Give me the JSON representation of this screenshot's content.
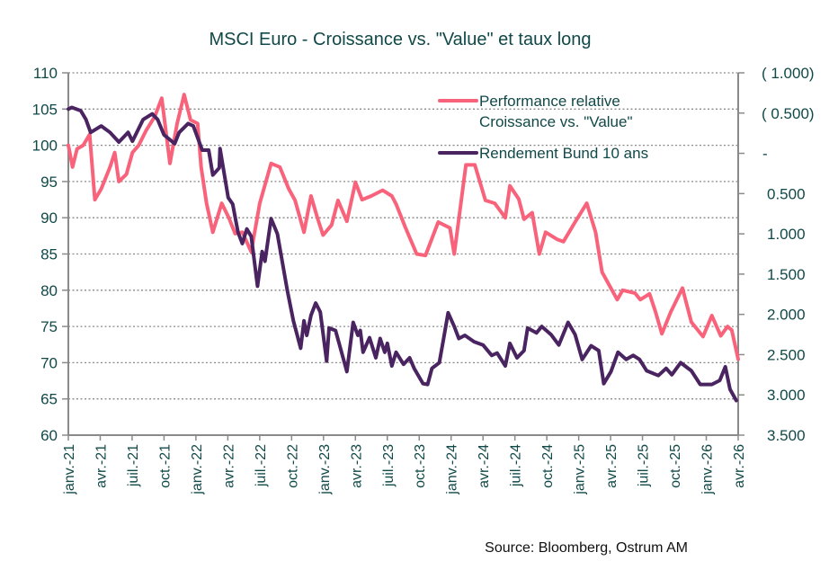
{
  "chart_data": {
    "type": "line",
    "title": "MSCI Euro - Croissance vs. \"Value\" et taux long",
    "source": "Source: Bloomberg, Ostrum AM",
    "x_tick_labels": [
      "janv.-21",
      "avr.-21",
      "juil.-21",
      "oct.-21",
      "janv.-22",
      "avr.-22",
      "juil.-22",
      "oct.-22",
      "janv.-23",
      "avr.-23",
      "juil.-23",
      "oct.-23",
      "janv.-24",
      "avr.-24",
      "juil.-24",
      "oct.-24",
      "janv.-25",
      "avr.-25",
      "juil.-25",
      "oct.-25",
      "janv.-26",
      "avr.-26"
    ],
    "xlim": [
      "2021-01-01",
      "2026-04-01"
    ],
    "y_left": {
      "ylim": [
        60,
        110
      ],
      "ticks": [
        "60",
        "65",
        "70",
        "75",
        "80",
        "85",
        "90",
        "95",
        "100",
        "105",
        "110"
      ]
    },
    "y_right": {
      "ylim": [
        3.5,
        -1.0
      ],
      "inverted": true,
      "ticks": [
        "( 1.000)",
        "( 0.500)",
        "-",
        "0.500",
        "1.000",
        "1.500",
        "2.000",
        "2.500",
        "3.000",
        "3.500"
      ]
    },
    "grid": "horizontal dotted",
    "legend_placement": "top-right",
    "series": [
      {
        "name": "Performance relative\nCroissance vs. \"Value\"",
        "legend_lines": [
          "Performance relative",
          "Croissance vs. \"Value\""
        ],
        "axis": "left",
        "color": "#F8637B",
        "points": [
          [
            "2021-01-01",
            100
          ],
          [
            "2021-01-13",
            97
          ],
          [
            "2021-01-26",
            99.5
          ],
          [
            "2021-02-13",
            100
          ],
          [
            "2021-03-01",
            101.5
          ],
          [
            "2021-03-16",
            92.5
          ],
          [
            "2021-04-04",
            94
          ],
          [
            "2021-04-29",
            97
          ],
          [
            "2021-05-12",
            99
          ],
          [
            "2021-05-24",
            95
          ],
          [
            "2021-06-15",
            96
          ],
          [
            "2021-07-02",
            99
          ],
          [
            "2021-07-20",
            100
          ],
          [
            "2021-08-10",
            102
          ],
          [
            "2021-09-05",
            104
          ],
          [
            "2021-09-25",
            106.5
          ],
          [
            "2021-10-18",
            97.5
          ],
          [
            "2021-11-08",
            103
          ],
          [
            "2021-11-28",
            107
          ],
          [
            "2021-12-16",
            103.5
          ],
          [
            "2022-01-06",
            103
          ],
          [
            "2022-01-16",
            97
          ],
          [
            "2022-02-01",
            92
          ],
          [
            "2022-02-19",
            88
          ],
          [
            "2022-03-14",
            92
          ],
          [
            "2022-04-04",
            90
          ],
          [
            "2022-04-22",
            87.8
          ],
          [
            "2022-05-12",
            88
          ],
          [
            "2022-06-07",
            85.3
          ],
          [
            "2022-07-01",
            92
          ],
          [
            "2022-08-03",
            97.5
          ],
          [
            "2022-08-28",
            97
          ],
          [
            "2022-09-23",
            94
          ],
          [
            "2022-10-11",
            92.4
          ],
          [
            "2022-11-06",
            88
          ],
          [
            "2022-11-26",
            93
          ],
          [
            "2022-12-14",
            90
          ],
          [
            "2022-12-30",
            87.6
          ],
          [
            "2023-01-24",
            89
          ],
          [
            "2023-02-12",
            92.4
          ],
          [
            "2023-03-07",
            89.5
          ],
          [
            "2023-04-01",
            94.9
          ],
          [
            "2023-04-20",
            92.5
          ],
          [
            "2023-05-16",
            93
          ],
          [
            "2023-06-18",
            93.8
          ],
          [
            "2023-07-14",
            93
          ],
          [
            "2023-07-26",
            91.9
          ],
          [
            "2023-08-21",
            88.8
          ],
          [
            "2023-09-24",
            85
          ],
          [
            "2023-10-19",
            84.8
          ],
          [
            "2023-11-25",
            89.4
          ],
          [
            "2023-12-28",
            88.6
          ],
          [
            "2024-01-10",
            85
          ],
          [
            "2024-02-13",
            97.3
          ],
          [
            "2024-03-08",
            97.3
          ],
          [
            "2024-04-08",
            92.4
          ],
          [
            "2024-05-04",
            92
          ],
          [
            "2024-06-04",
            90
          ],
          [
            "2024-06-17",
            94.4
          ],
          [
            "2024-07-12",
            92.6
          ],
          [
            "2024-07-27",
            89.8
          ],
          [
            "2024-08-20",
            90.7
          ],
          [
            "2024-09-10",
            85
          ],
          [
            "2024-09-28",
            88
          ],
          [
            "2024-11-01",
            87
          ],
          [
            "2024-11-18",
            86.7
          ],
          [
            "2024-12-21",
            89.4
          ],
          [
            "2025-01-24",
            92
          ],
          [
            "2025-02-19",
            88
          ],
          [
            "2025-03-07",
            82.5
          ],
          [
            "2025-04-20",
            78.7
          ],
          [
            "2025-05-05",
            80
          ],
          [
            "2025-06-10",
            79.6
          ],
          [
            "2025-06-25",
            78.7
          ],
          [
            "2025-07-21",
            79.5
          ],
          [
            "2025-08-08",
            77
          ],
          [
            "2025-08-26",
            74
          ],
          [
            "2025-09-21",
            77
          ],
          [
            "2025-10-24",
            80.3
          ],
          [
            "2025-11-19",
            75.6
          ],
          [
            "2025-12-22",
            73.6
          ],
          [
            "2026-01-17",
            76.5
          ],
          [
            "2026-02-12",
            73.7
          ],
          [
            "2026-03-01",
            75
          ],
          [
            "2026-03-13",
            74.5
          ],
          [
            "2026-04-01",
            70.5
          ]
        ]
      },
      {
        "name": "Rendement Bund 10 ans",
        "axis": "right",
        "color": "#4A2461",
        "points": [
          [
            "2021-01-01",
            -0.55
          ],
          [
            "2021-01-11",
            -0.57
          ],
          [
            "2021-02-06",
            -0.53
          ],
          [
            "2021-02-21",
            -0.42
          ],
          [
            "2021-03-04",
            -0.26
          ],
          [
            "2021-04-04",
            -0.34
          ],
          [
            "2021-04-29",
            -0.26
          ],
          [
            "2021-05-24",
            -0.14
          ],
          [
            "2021-06-20",
            -0.26
          ],
          [
            "2021-07-02",
            -0.15
          ],
          [
            "2021-08-02",
            -0.42
          ],
          [
            "2021-08-28",
            -0.49
          ],
          [
            "2021-09-13",
            -0.42
          ],
          [
            "2021-10-01",
            -0.23
          ],
          [
            "2021-11-01",
            -0.12
          ],
          [
            "2021-11-14",
            -0.26
          ],
          [
            "2021-12-09",
            -0.37
          ],
          [
            "2021-12-24",
            -0.34
          ],
          [
            "2022-01-19",
            -0.04
          ],
          [
            "2022-02-07",
            -0.04
          ],
          [
            "2022-02-19",
            0.27
          ],
          [
            "2022-03-07",
            0.18
          ],
          [
            "2022-03-09",
            -0.06
          ],
          [
            "2022-04-02",
            0.55
          ],
          [
            "2022-04-15",
            0.63
          ],
          [
            "2022-04-30",
            0.98
          ],
          [
            "2022-05-12",
            1.12
          ],
          [
            "2022-05-25",
            0.94
          ],
          [
            "2022-06-07",
            1.03
          ],
          [
            "2022-06-25",
            1.65
          ],
          [
            "2022-07-08",
            1.22
          ],
          [
            "2022-07-16",
            1.34
          ],
          [
            "2022-08-03",
            0.81
          ],
          [
            "2022-08-21",
            1.0
          ],
          [
            "2022-09-19",
            1.7
          ],
          [
            "2022-10-06",
            2.08
          ],
          [
            "2022-10-27",
            2.42
          ],
          [
            "2022-11-06",
            2.08
          ],
          [
            "2022-11-14",
            2.26
          ],
          [
            "2022-11-26",
            2.01
          ],
          [
            "2022-12-09",
            1.86
          ],
          [
            "2022-12-22",
            1.97
          ],
          [
            "2023-01-10",
            2.58
          ],
          [
            "2023-01-17",
            2.17
          ],
          [
            "2023-02-05",
            2.2
          ],
          [
            "2023-03-07",
            2.71
          ],
          [
            "2023-03-25",
            2.1
          ],
          [
            "2023-04-08",
            2.26
          ],
          [
            "2023-04-15",
            2.2
          ],
          [
            "2023-04-23",
            2.47
          ],
          [
            "2023-05-11",
            2.29
          ],
          [
            "2023-05-29",
            2.54
          ],
          [
            "2023-06-11",
            2.3
          ],
          [
            "2023-06-24",
            2.47
          ],
          [
            "2023-07-01",
            2.36
          ],
          [
            "2023-07-14",
            2.64
          ],
          [
            "2023-07-26",
            2.47
          ],
          [
            "2023-08-17",
            2.62
          ],
          [
            "2023-09-04",
            2.54
          ],
          [
            "2023-09-17",
            2.67
          ],
          [
            "2023-10-12",
            2.86
          ],
          [
            "2023-10-25",
            2.87
          ],
          [
            "2023-11-07",
            2.67
          ],
          [
            "2023-11-28",
            2.6
          ],
          [
            "2023-12-10",
            2.3
          ],
          [
            "2023-12-23",
            1.98
          ],
          [
            "2024-01-10",
            2.15
          ],
          [
            "2024-01-23",
            2.3
          ],
          [
            "2024-02-10",
            2.26
          ],
          [
            "2024-03-06",
            2.34
          ],
          [
            "2024-04-01",
            2.38
          ],
          [
            "2024-04-26",
            2.51
          ],
          [
            "2024-05-11",
            2.48
          ],
          [
            "2024-06-04",
            2.64
          ],
          [
            "2024-06-17",
            2.36
          ],
          [
            "2024-07-07",
            2.54
          ],
          [
            "2024-07-27",
            2.45
          ],
          [
            "2024-08-07",
            2.17
          ],
          [
            "2024-09-02",
            2.23
          ],
          [
            "2024-09-17",
            2.15
          ],
          [
            "2024-10-13",
            2.25
          ],
          [
            "2024-11-05",
            2.38
          ],
          [
            "2024-12-01",
            2.1
          ],
          [
            "2024-12-21",
            2.25
          ],
          [
            "2025-01-11",
            2.56
          ],
          [
            "2025-02-06",
            2.39
          ],
          [
            "2025-02-28",
            2.45
          ],
          [
            "2025-03-12",
            2.86
          ],
          [
            "2025-04-02",
            2.71
          ],
          [
            "2025-04-22",
            2.47
          ],
          [
            "2025-05-15",
            2.56
          ],
          [
            "2025-06-05",
            2.51
          ],
          [
            "2025-06-23",
            2.56
          ],
          [
            "2025-07-13",
            2.7
          ],
          [
            "2025-08-16",
            2.76
          ],
          [
            "2025-09-08",
            2.67
          ],
          [
            "2025-09-24",
            2.75
          ],
          [
            "2025-10-19",
            2.6
          ],
          [
            "2025-11-19",
            2.7
          ],
          [
            "2025-12-14",
            2.87
          ],
          [
            "2026-01-17",
            2.87
          ],
          [
            "2026-02-09",
            2.82
          ],
          [
            "2026-02-25",
            2.65
          ],
          [
            "2026-03-08",
            2.93
          ],
          [
            "2026-03-26",
            3.07
          ]
        ]
      }
    ]
  }
}
